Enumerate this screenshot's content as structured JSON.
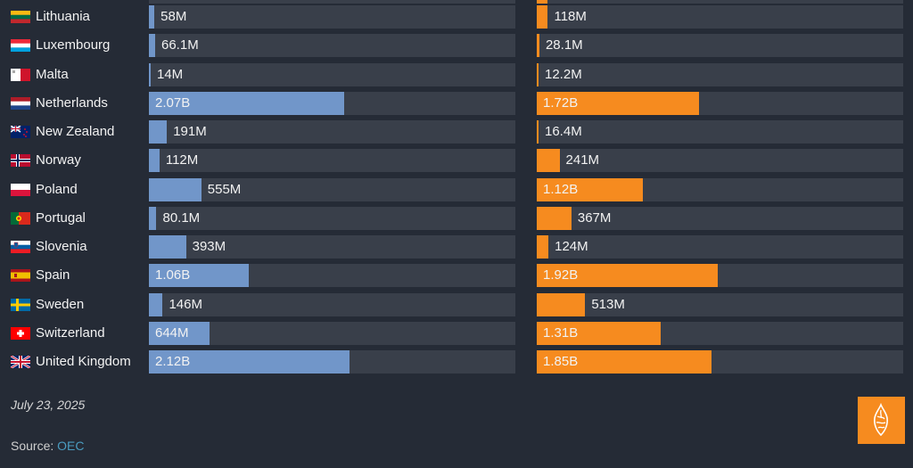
{
  "chart_data": {
    "type": "bar",
    "orientation": "horizontal",
    "categories": [
      "Lithuania",
      "Luxembourg",
      "Malta",
      "Netherlands",
      "New Zealand",
      "Norway",
      "Poland",
      "Portugal",
      "Slovenia",
      "Spain",
      "Sweden",
      "Switzerland",
      "United Kingdom"
    ],
    "series": [
      {
        "name": "left",
        "color": "#7196c9",
        "values": [
          0.058,
          0.0661,
          0.014,
          2.07,
          0.191,
          0.112,
          0.555,
          0.0801,
          0.393,
          1.06,
          0.146,
          0.644,
          2.12
        ],
        "labels": [
          "58M",
          "66.1M",
          "14M",
          "2.07B",
          "191M",
          "112M",
          "555M",
          "80.1M",
          "393M",
          "1.06B",
          "146M",
          "644M",
          "2.12B"
        ]
      },
      {
        "name": "right",
        "color": "#f68b1f",
        "values": [
          0.118,
          0.0281,
          0.0122,
          1.72,
          0.0164,
          0.241,
          1.12,
          0.367,
          0.124,
          1.92,
          0.513,
          1.31,
          1.85
        ],
        "labels": [
          "118M",
          "28.1M",
          "12.2M",
          "1.72B",
          "16.4M",
          "241M",
          "1.12B",
          "367M",
          "124M",
          "1.92B",
          "513M",
          "1.31B",
          "1.85B"
        ]
      }
    ],
    "value_unit": "USD billions",
    "xlim": [
      0,
      3.88
    ]
  },
  "flags": [
    "lithuania-flag",
    "luxembourg-flag",
    "malta-flag",
    "netherlands-flag",
    "new-zealand-flag",
    "norway-flag",
    "poland-flag",
    "portugal-flag",
    "slovenia-flag",
    "spain-flag",
    "sweden-flag",
    "switzerland-flag",
    "united-kingdom-flag"
  ],
  "footer": {
    "date": "July 23, 2025",
    "source_label": "Source: ",
    "source_link": "OEC"
  },
  "logo": {
    "name": "al-jazeera-logo",
    "color": "#f68b1f"
  }
}
